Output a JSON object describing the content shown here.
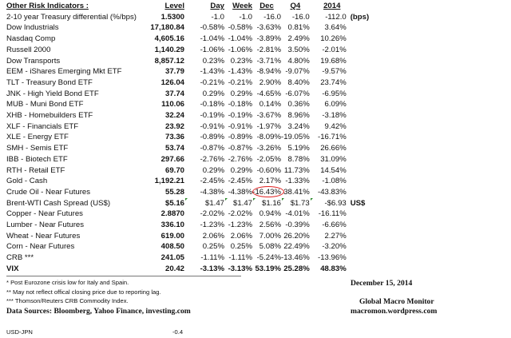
{
  "header": {
    "title": "Other Risk Indicators :",
    "level": "Level",
    "day": "Day",
    "week": "Week",
    "dec": "Dec",
    "q4": "Q4",
    "y2014": "2014"
  },
  "rows": [
    {
      "name": "2-10 year Treasury differential (%/bps)",
      "level": "1.5300",
      "day": "-1.0",
      "week": "-1.0",
      "dec": "-16.0",
      "q4": "-16.0",
      "y2014": "-112.0",
      "unit": "(bps)"
    },
    {
      "name": "Dow Industrials",
      "level": "17,180.84",
      "day": "-0.58%",
      "week": "-0.58%",
      "dec": "-3.63%",
      "q4": "0.81%",
      "y2014": "3.64%"
    },
    {
      "name": "Nasdaq Comp",
      "level": "4,605.16",
      "day": "-1.04%",
      "week": "-1.04%",
      "dec": "-3.89%",
      "q4": "2.49%",
      "y2014": "10.26%"
    },
    {
      "name": "Russell 2000",
      "level": "1,140.29",
      "day": "-1.06%",
      "week": "-1.06%",
      "dec": "-2.81%",
      "q4": "3.50%",
      "y2014": "-2.01%"
    },
    {
      "name": "Dow Transports",
      "level": "8,857.12",
      "day": "0.23%",
      "week": "0.23%",
      "dec": "-3.71%",
      "q4": "4.80%",
      "y2014": "19.68%"
    },
    {
      "name": "EEM - iShares Emerging Mkt ETF",
      "level": "37.79",
      "day": "-1.43%",
      "week": "-1.43%",
      "dec": "-8.94%",
      "q4": "-9.07%",
      "y2014": "-9.57%"
    },
    {
      "name": "TLT - Treasury Bond ETF",
      "level": "126.04",
      "day": "-0.21%",
      "week": "-0.21%",
      "dec": "2.90%",
      "q4": "8.40%",
      "y2014": "23.74%"
    },
    {
      "name": "JNK - High Yield Bond ETF",
      "level": "37.74",
      "day": "0.29%",
      "week": "0.29%",
      "dec": "-4.65%",
      "q4": "-6.07%",
      "y2014": "-6.95%"
    },
    {
      "name": "MUB - Muni Bond ETF",
      "level": "110.06",
      "day": "-0.18%",
      "week": "-0.18%",
      "dec": "0.14%",
      "q4": "0.36%",
      "y2014": "6.09%"
    },
    {
      "name": "XHB - Homebuilders ETF",
      "level": "32.24",
      "day": "-0.19%",
      "week": "-0.19%",
      "dec": "-3.67%",
      "q4": "8.96%",
      "y2014": "-3.18%"
    },
    {
      "name": "XLF - Financials ETF",
      "level": "23.92",
      "day": "-0.91%",
      "week": "-0.91%",
      "dec": "-1.97%",
      "q4": "3.24%",
      "y2014": "9.42%"
    },
    {
      "name": "XLE - Energy ETF",
      "level": "73.36",
      "day": "-0.89%",
      "week": "-0.89%",
      "dec": "-8.09%",
      "q4": "-19.05%",
      "y2014": "-16.71%"
    },
    {
      "name": "SMH - Semis ETF",
      "level": "53.74",
      "day": "-0.87%",
      "week": "-0.87%",
      "dec": "-3.26%",
      "q4": "5.19%",
      "y2014": "26.66%"
    },
    {
      "name": "IBB - Biotech ETF",
      "level": "297.66",
      "day": "-2.76%",
      "week": "-2.76%",
      "dec": "-2.05%",
      "q4": "8.78%",
      "y2014": "31.09%"
    },
    {
      "name": "RTH - Retail ETF",
      "level": "69.70",
      "day": "0.29%",
      "week": "0.29%",
      "dec": "-0.60%",
      "q4": "11.73%",
      "y2014": "14.54%"
    },
    {
      "name": "Gold - Cash",
      "level": "1,192.21",
      "day": "-2.45%",
      "week": "-2.45%",
      "dec": "2.17%",
      "q4": "-1.33%",
      "y2014": "-1.08%"
    },
    {
      "name": "Crude Oil - Near Futures",
      "level": "55.28",
      "day": "-4.38%",
      "week": "-4.38%",
      "dec": "-16.43%",
      "q4": "38.41%",
      "y2014": "-43.83%",
      "highlight": "dec"
    },
    {
      "name": "Brent-WTI Cash Spread (US$)",
      "level": "$5.16",
      "day": "$1.47",
      "week": "$1.47",
      "dec": "$1.16",
      "q4": "$1.73",
      "y2014": "-$6.93",
      "unit": "US$",
      "flags": true
    },
    {
      "name": "Copper - Near Futures",
      "level": "2.8870",
      "day": "-2.02%",
      "week": "-2.02%",
      "dec": "0.94%",
      "q4": "-4.01%",
      "y2014": "-16.11%"
    },
    {
      "name": "Lumber - Near Futures",
      "level": "336.10",
      "day": "-1.23%",
      "week": "-1.23%",
      "dec": "2.56%",
      "q4": "-0.39%",
      "y2014": "-6.66%"
    },
    {
      "name": "Wheat - Near Futures",
      "level": "619.00",
      "day": "2.06%",
      "week": "2.06%",
      "dec": "7.00%",
      "q4": "26.20%",
      "y2014": "2.27%"
    },
    {
      "name": "Corn - Near Futures",
      "level": "408.50",
      "day": "0.25%",
      "week": "0.25%",
      "dec": "5.08%",
      "q4": "22.49%",
      "y2014": "-3.20%"
    },
    {
      "name": "CRB ***",
      "level": "241.05",
      "day": "-1.11%",
      "week": "-1.11%",
      "dec": "-5.24%",
      "q4": "-13.46%",
      "y2014": "-13.96%"
    },
    {
      "name": "VIX",
      "level": "20.42",
      "day": "-3.13%",
      "week": "-3.13%",
      "dec": "53.19%",
      "q4": "25.28%",
      "y2014": "48.83%",
      "bold": true
    }
  ],
  "footnotes": [
    "*   Post Eurozone crisis low for Italy and Spain.",
    "** May not reflect offical closing price due to reporting lag.",
    "*** Thomson/Reuters CRB Commodity Index."
  ],
  "sources": "Data Sources:  Bloomberg,  Yahoo Finance, investing.com",
  "date": "December 15, 2014",
  "publisher": "Global Macro Monitor",
  "website": "macromon.wordpress.com",
  "extra": {
    "label": "USD-JPN",
    "value": "-0.4"
  },
  "colors": {
    "highlight_circle": "#e02020",
    "comment_flag": "#2a8a2a"
  }
}
